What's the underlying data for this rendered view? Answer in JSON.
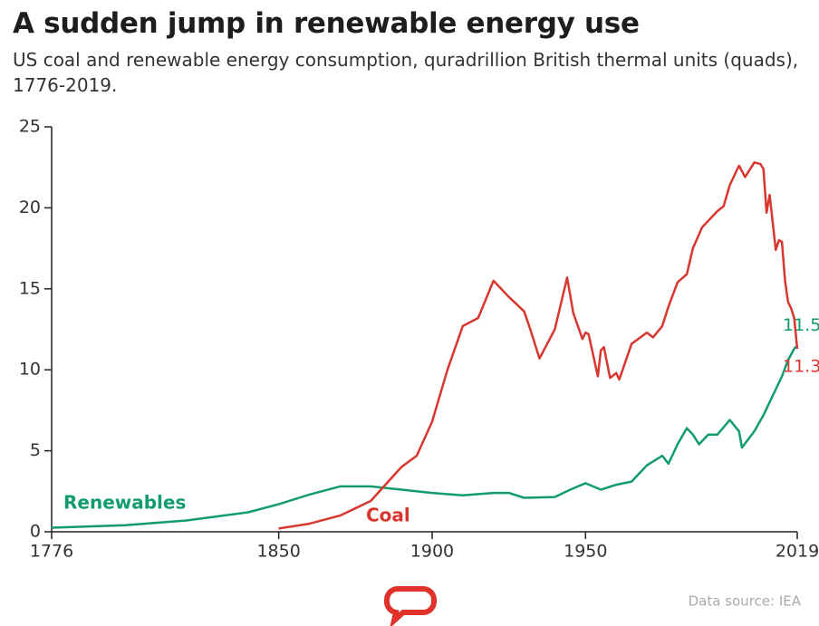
{
  "chart_data": {
    "type": "line",
    "title": "A sudden jump in renewable energy use",
    "subtitle": "US coal and renewable energy consumption, quradrillion British thermal units (quads), 1776-2019.",
    "source": "Data source: IEA",
    "xlim": [
      1776,
      2019
    ],
    "xticks": [
      1776,
      1850,
      1900,
      1950,
      2019
    ],
    "ylim": [
      0,
      25
    ],
    "yticks": [
      0,
      5,
      10,
      15,
      20,
      25
    ],
    "series": [
      {
        "name": "Renewables",
        "color": "#139c6b",
        "x": [
          1776,
          1800,
          1820,
          1840,
          1850,
          1860,
          1870,
          1880,
          1890,
          1900,
          1910,
          1920,
          1925,
          1930,
          1940,
          1945,
          1950,
          1955,
          1960,
          1965,
          1970,
          1975,
          1977,
          1980,
          1983,
          1985,
          1987,
          1990,
          1993,
          1997,
          2000,
          2001,
          2005,
          2008,
          2010,
          2012,
          2014,
          2016,
          2018,
          2019
        ],
        "values": [
          0.25,
          0.4,
          0.7,
          1.2,
          1.7,
          2.3,
          2.8,
          2.8,
          2.6,
          2.4,
          2.25,
          2.4,
          2.4,
          2.1,
          2.15,
          2.6,
          3.0,
          2.6,
          2.9,
          3.1,
          4.1,
          4.7,
          4.2,
          5.4,
          6.4,
          6.0,
          5.4,
          6.0,
          6.0,
          6.9,
          6.2,
          5.2,
          6.2,
          7.2,
          8.0,
          8.8,
          9.6,
          10.6,
          11.3,
          11.5
        ]
      },
      {
        "name": "Coal",
        "color": "#d7372f",
        "x": [
          1850,
          1860,
          1870,
          1880,
          1890,
          1895,
          1900,
          1905,
          1910,
          1915,
          1920,
          1925,
          1930,
          1932,
          1935,
          1940,
          1944,
          1946,
          1949,
          1950,
          1951,
          1954,
          1955,
          1956,
          1958,
          1960,
          1961,
          1965,
          1970,
          1972,
          1975,
          1977,
          1980,
          1983,
          1985,
          1988,
          1990,
          1993,
          1995,
          1997,
          2000,
          2002,
          2005,
          2007,
          2008,
          2009,
          2010,
          2012,
          2013,
          2014,
          2015,
          2016,
          2017,
          2018,
          2019
        ],
        "values": [
          0.2,
          0.5,
          1.0,
          1.9,
          4.0,
          4.7,
          6.8,
          10.0,
          12.7,
          13.2,
          15.5,
          14.5,
          13.6,
          12.5,
          10.7,
          12.5,
          15.7,
          13.5,
          11.9,
          12.3,
          12.2,
          9.6,
          11.2,
          11.4,
          9.5,
          9.8,
          9.4,
          11.6,
          12.3,
          12.0,
          12.7,
          13.9,
          15.4,
          15.9,
          17.5,
          18.8,
          19.2,
          19.8,
          20.1,
          21.4,
          22.6,
          21.9,
          22.8,
          22.7,
          22.4,
          19.7,
          20.8,
          17.4,
          18.0,
          17.9,
          15.5,
          14.2,
          13.8,
          13.2,
          11.3
        ]
      }
    ]
  }
}
